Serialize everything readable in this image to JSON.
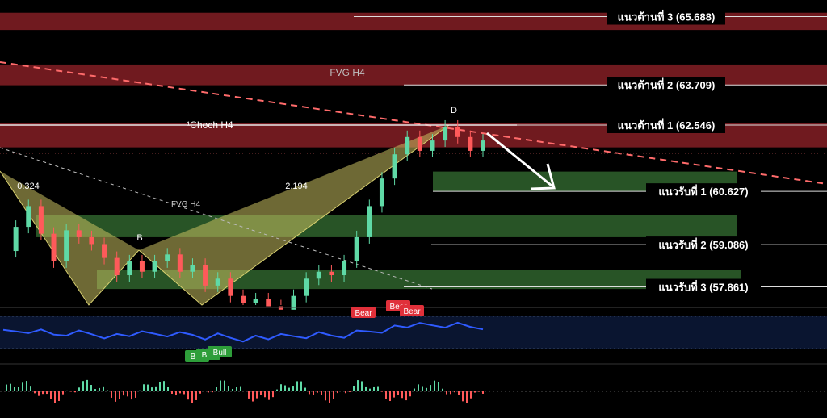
{
  "colors": {
    "background": "#000000",
    "resistance_zone": "#7a1c22",
    "support_zone": "#2c5d2a",
    "harmonic_fill": "#c8c060",
    "trendline_red": "#ff6b6b",
    "rsi_line": "#2f5bff",
    "bull_badge": "#2e9e3a",
    "bear_badge": "#e0303a",
    "candle_up": "#5fd9a6",
    "candle_down": "#ff5a5a"
  },
  "labels": {
    "fvg_h4_top": "FVG H4",
    "fvg_h4_left": "FVG H4",
    "choch": "¹Choch H4",
    "point_d": "D",
    "point_b": "B",
    "ratio_left": "0.324",
    "ratio_mid": "2.194"
  },
  "chart_data": {
    "type": "line",
    "title": "",
    "xlabel": "",
    "ylabel": "",
    "ylim": [
      56.6,
      66.2
    ],
    "resistance_levels": [
      {
        "label": "แนวต้านที่ 3 (65.688)",
        "value": 65.688
      },
      {
        "label": "แนวต้านที่ 2 (63.709)",
        "value": 63.709
      },
      {
        "label": "แนวต้านที่ 1 (62.546)",
        "value": 62.546
      }
    ],
    "support_levels": [
      {
        "label": "แนวรับที่ 1 (60.627)",
        "value": 60.627
      },
      {
        "label": "แนวรับที่ 2 (59.086)",
        "value": 59.086
      },
      {
        "label": "แนวรับที่ 3 (57.861)",
        "value": 57.861
      }
    ],
    "zones": [
      {
        "kind": "resistance",
        "low": 65.3,
        "high": 65.8
      },
      {
        "kind": "resistance",
        "low": 63.7,
        "high": 64.3
      },
      {
        "kind": "resistance",
        "low": 61.9,
        "high": 62.6
      },
      {
        "kind": "support",
        "low": 60.62,
        "high": 61.2
      },
      {
        "kind": "support",
        "low": 59.3,
        "high": 59.95
      },
      {
        "kind": "support",
        "low": 57.8,
        "high": 58.35
      }
    ],
    "price": [
      58.9,
      59.6,
      60.2,
      59.4,
      58.6,
      59.5,
      59.3,
      59.1,
      58.7,
      58.2,
      58.6,
      58.3,
      58.6,
      58.8,
      58.3,
      58.5,
      57.9,
      58.1,
      57.6,
      57.4,
      57.5,
      57.3,
      57.2,
      57.6,
      58.1,
      58.3,
      58.2,
      58.6,
      59.3,
      60.2,
      61.0,
      61.7,
      62.2,
      61.8,
      62.1,
      62.5,
      62.2,
      61.8,
      62.1
    ],
    "rsi_badges": [
      {
        "label": "Bull"
      },
      {
        "label": "Bull"
      },
      {
        "label": "Bull"
      },
      {
        "label": "Bear"
      },
      {
        "label": "Bear"
      },
      {
        "label": "Bear"
      }
    ]
  }
}
